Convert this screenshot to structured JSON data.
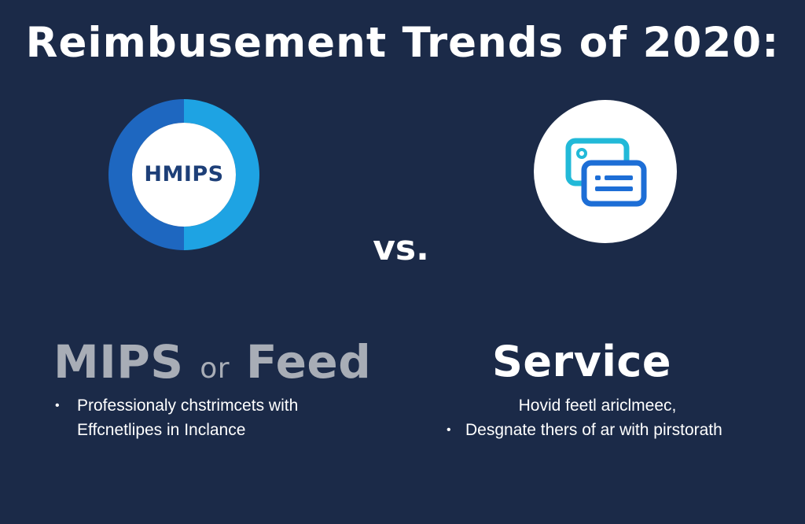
{
  "title": "Reimbusement Trends of 2020:",
  "left_icon": {
    "name": "donut-ring-icon",
    "label": "HMIPS",
    "colors": {
      "ring_dark": "#1e67c0",
      "ring_light": "#1ea3e3",
      "label": "#1d3f78"
    }
  },
  "vs_label": "vs.",
  "right_icon": {
    "name": "document-cards-icon",
    "colors": {
      "back_card": "#22b9d8",
      "front_card": "#1d6ed6"
    }
  },
  "left": {
    "heading_main": "MIPS",
    "heading_or": "or",
    "heading_end": "Feed",
    "bullets": [
      "Professionaly chstrimcets with",
      "Effcnetlipes in Inclance"
    ]
  },
  "right": {
    "heading": "Service",
    "lines": [
      "Hovid feetl ariclmeec,",
      "Desgnate thers of ar with pirstorath"
    ]
  },
  "colors": {
    "background": "#1b2a48",
    "heading_left": "#a8adb6",
    "text": "#ffffff"
  }
}
